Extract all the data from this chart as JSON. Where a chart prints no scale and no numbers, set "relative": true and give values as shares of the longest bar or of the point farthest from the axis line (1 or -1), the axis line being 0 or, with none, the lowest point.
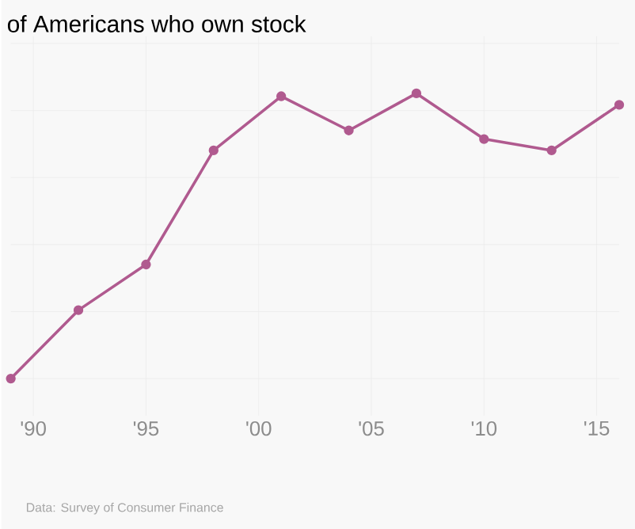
{
  "chart_data": {
    "type": "line",
    "title": "of Americans who own stock",
    "relative": true,
    "x": [
      1989,
      1992,
      1995,
      1998,
      2001,
      2004,
      2007,
      2010,
      2013,
      2016
    ],
    "series": [
      {
        "color": "#b05a8f",
        "values": [
          0,
          0.24,
          0.4,
          0.8,
          0.99,
          0.87,
          1,
          0.84,
          0.8,
          0.96
        ]
      }
    ],
    "xlim": [
      1989,
      2016
    ],
    "xticks": [
      {
        "value": 1990,
        "label": "'90"
      },
      {
        "value": 1995,
        "label": "'95"
      },
      {
        "value": 2000,
        "label": "'00"
      },
      {
        "value": 2005,
        "label": "'05"
      },
      {
        "value": 2010,
        "label": "'10"
      },
      {
        "value": 2015,
        "label": "'15"
      }
    ],
    "grid": true,
    "marker": "circle",
    "line_style": "solid",
    "annotations": [
      "Data: Survey of Consumer Finance"
    ]
  }
}
